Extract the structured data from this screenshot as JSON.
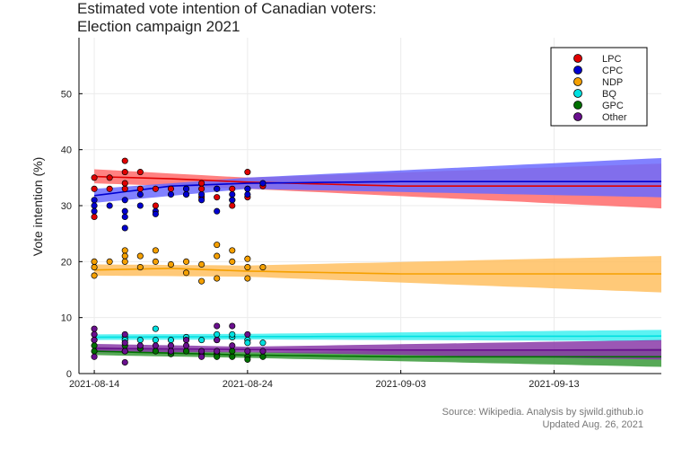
{
  "chart_data": {
    "type": "scatter",
    "title_line1": "Estimated vote intention of Canadian voters:",
    "title_line2": "Election campaign 2021",
    "ylabel": "Vote intention (%)",
    "xlabel": "",
    "x_range_days": [
      "2021-08-13",
      "2021-09-20"
    ],
    "ylim": [
      0,
      60
    ],
    "y_ticks": [
      0,
      10,
      20,
      30,
      40,
      50
    ],
    "x_ticks": [
      "2021-08-14",
      "2021-08-24",
      "2021-09-03",
      "2021-09-13"
    ],
    "grid": true,
    "legend_position": "top-right",
    "source_line1": "Source: Wikipedia. Analysis by sjwild.github.io",
    "source_line2": "Updated Aug. 26, 2021",
    "series": [
      {
        "name": "LPC",
        "color": "#e00000",
        "band_color": "#ff6b6b",
        "points": [
          [
            "2021-08-14",
            35
          ],
          [
            "2021-08-14",
            33
          ],
          [
            "2021-08-14",
            28
          ],
          [
            "2021-08-15",
            35
          ],
          [
            "2021-08-15",
            33
          ],
          [
            "2021-08-16",
            38
          ],
          [
            "2021-08-16",
            36
          ],
          [
            "2021-08-16",
            34
          ],
          [
            "2021-08-16",
            33
          ],
          [
            "2021-08-17",
            36
          ],
          [
            "2021-08-17",
            33
          ],
          [
            "2021-08-18",
            33
          ],
          [
            "2021-08-18",
            30
          ],
          [
            "2021-08-19",
            33
          ],
          [
            "2021-08-20",
            33
          ],
          [
            "2021-08-20",
            32
          ],
          [
            "2021-08-21",
            34
          ],
          [
            "2021-08-21",
            33
          ],
          [
            "2021-08-21",
            31.5
          ],
          [
            "2021-08-22",
            33
          ],
          [
            "2021-08-22",
            31.5
          ],
          [
            "2021-08-23",
            33
          ],
          [
            "2021-08-23",
            31
          ],
          [
            "2021-08-23",
            30
          ],
          [
            "2021-08-24",
            36
          ],
          [
            "2021-08-24",
            33
          ],
          [
            "2021-08-24",
            31.5
          ],
          [
            "2021-08-25",
            33.5
          ]
        ],
        "trend": [
          [
            "2021-08-14",
            35.2
          ],
          [
            "2021-08-19",
            34.8
          ],
          [
            "2021-08-24",
            34.2
          ],
          [
            "2021-09-03",
            33.5
          ],
          [
            "2021-09-20",
            33.5
          ]
        ],
        "band_upper": [
          [
            "2021-08-14",
            36.5
          ],
          [
            "2021-08-24",
            35
          ],
          [
            "2021-09-20",
            37.5
          ]
        ],
        "band_lower": [
          [
            "2021-08-14",
            34
          ],
          [
            "2021-08-24",
            33
          ],
          [
            "2021-09-20",
            29.5
          ]
        ]
      },
      {
        "name": "CPC",
        "color": "#0000d0",
        "band_color": "#6b6bff",
        "points": [
          [
            "2021-08-14",
            31
          ],
          [
            "2021-08-14",
            30
          ],
          [
            "2021-08-14",
            29
          ],
          [
            "2021-08-15",
            30
          ],
          [
            "2021-08-16",
            31
          ],
          [
            "2021-08-16",
            29
          ],
          [
            "2021-08-16",
            28
          ],
          [
            "2021-08-16",
            26
          ],
          [
            "2021-08-17",
            30
          ],
          [
            "2021-08-17",
            32
          ],
          [
            "2021-08-18",
            29
          ],
          [
            "2021-08-18",
            28.5
          ],
          [
            "2021-08-19",
            32
          ],
          [
            "2021-08-20",
            33
          ],
          [
            "2021-08-20",
            32
          ],
          [
            "2021-08-21",
            32
          ],
          [
            "2021-08-21",
            31
          ],
          [
            "2021-08-22",
            33
          ],
          [
            "2021-08-22",
            29
          ],
          [
            "2021-08-23",
            32
          ],
          [
            "2021-08-23",
            31
          ],
          [
            "2021-08-24",
            33
          ],
          [
            "2021-08-24",
            32
          ],
          [
            "2021-08-25",
            34
          ]
        ],
        "trend": [
          [
            "2021-08-14",
            31.8
          ],
          [
            "2021-08-19",
            33.5
          ],
          [
            "2021-08-24",
            34
          ],
          [
            "2021-09-03",
            34.3
          ],
          [
            "2021-09-20",
            34.3
          ]
        ],
        "band_upper": [
          [
            "2021-08-14",
            33
          ],
          [
            "2021-08-24",
            35
          ],
          [
            "2021-09-20",
            38.5
          ]
        ],
        "band_lower": [
          [
            "2021-08-14",
            30.5
          ],
          [
            "2021-08-24",
            33
          ],
          [
            "2021-09-20",
            31.5
          ]
        ]
      },
      {
        "name": "NDP",
        "color": "#f5a000",
        "band_color": "#ffc060",
        "points": [
          [
            "2021-08-14",
            20
          ],
          [
            "2021-08-14",
            19
          ],
          [
            "2021-08-14",
            17.5
          ],
          [
            "2021-08-15",
            20
          ],
          [
            "2021-08-16",
            22
          ],
          [
            "2021-08-16",
            21
          ],
          [
            "2021-08-16",
            20
          ],
          [
            "2021-08-17",
            21
          ],
          [
            "2021-08-17",
            19
          ],
          [
            "2021-08-18",
            22
          ],
          [
            "2021-08-18",
            20
          ],
          [
            "2021-08-19",
            19.5
          ],
          [
            "2021-08-20",
            20
          ],
          [
            "2021-08-20",
            18
          ],
          [
            "2021-08-21",
            19.5
          ],
          [
            "2021-08-21",
            16.5
          ],
          [
            "2021-08-22",
            23
          ],
          [
            "2021-08-22",
            21
          ],
          [
            "2021-08-22",
            17
          ],
          [
            "2021-08-23",
            22
          ],
          [
            "2021-08-23",
            20
          ],
          [
            "2021-08-24",
            20.5
          ],
          [
            "2021-08-24",
            19
          ],
          [
            "2021-08-24",
            17
          ],
          [
            "2021-08-25",
            19
          ]
        ],
        "trend": [
          [
            "2021-08-14",
            18.5
          ],
          [
            "2021-08-19",
            18.8
          ],
          [
            "2021-08-24",
            18.3
          ],
          [
            "2021-09-03",
            17.8
          ],
          [
            "2021-09-20",
            17.8
          ]
        ],
        "band_upper": [
          [
            "2021-08-14",
            19.5
          ],
          [
            "2021-08-24",
            19.3
          ],
          [
            "2021-09-20",
            21
          ]
        ],
        "band_lower": [
          [
            "2021-08-14",
            17.5
          ],
          [
            "2021-08-24",
            17.3
          ],
          [
            "2021-09-20",
            14.5
          ]
        ]
      },
      {
        "name": "BQ",
        "color": "#00e0e0",
        "band_color": "#40f0f0",
        "points": [
          [
            "2021-08-14",
            7
          ],
          [
            "2021-08-14",
            6
          ],
          [
            "2021-08-16",
            6.5
          ],
          [
            "2021-08-16",
            6
          ],
          [
            "2021-08-17",
            6
          ],
          [
            "2021-08-18",
            8
          ],
          [
            "2021-08-18",
            6
          ],
          [
            "2021-08-19",
            6
          ],
          [
            "2021-08-20",
            6.5
          ],
          [
            "2021-08-21",
            6
          ],
          [
            "2021-08-22",
            7
          ],
          [
            "2021-08-22",
            6
          ],
          [
            "2021-08-23",
            6.5
          ],
          [
            "2021-08-23",
            7
          ],
          [
            "2021-08-24",
            6
          ],
          [
            "2021-08-24",
            5.5
          ],
          [
            "2021-08-25",
            5.5
          ]
        ],
        "trend": [
          [
            "2021-08-14",
            6.5
          ],
          [
            "2021-08-24",
            6.6
          ],
          [
            "2021-09-20",
            6.7
          ]
        ],
        "band_upper": [
          [
            "2021-08-14",
            7
          ],
          [
            "2021-08-24",
            7.1
          ],
          [
            "2021-09-20",
            7.8
          ]
        ],
        "band_lower": [
          [
            "2021-08-14",
            6
          ],
          [
            "2021-08-24",
            6.1
          ],
          [
            "2021-09-20",
            5.8
          ]
        ]
      },
      {
        "name": "GPC",
        "color": "#007000",
        "band_color": "#3a9a3a",
        "points": [
          [
            "2021-08-14",
            5
          ],
          [
            "2021-08-14",
            4
          ],
          [
            "2021-08-16",
            5
          ],
          [
            "2021-08-16",
            4
          ],
          [
            "2021-08-17",
            4.5
          ],
          [
            "2021-08-18",
            4
          ],
          [
            "2021-08-19",
            3.5
          ],
          [
            "2021-08-20",
            4
          ],
          [
            "2021-08-21",
            3.5
          ],
          [
            "2021-08-22",
            3.5
          ],
          [
            "2021-08-22",
            3
          ],
          [
            "2021-08-23",
            4
          ],
          [
            "2021-08-23",
            3
          ],
          [
            "2021-08-24",
            3
          ],
          [
            "2021-08-24",
            2.5
          ],
          [
            "2021-08-25",
            3
          ]
        ],
        "trend": [
          [
            "2021-08-14",
            4
          ],
          [
            "2021-08-24",
            3.3
          ],
          [
            "2021-09-03",
            3
          ],
          [
            "2021-09-20",
            3
          ]
        ],
        "band_upper": [
          [
            "2021-08-14",
            4.8
          ],
          [
            "2021-08-24",
            3.8
          ],
          [
            "2021-09-20",
            4.5
          ]
        ],
        "band_lower": [
          [
            "2021-08-14",
            3.3
          ],
          [
            "2021-08-24",
            2.8
          ],
          [
            "2021-09-20",
            1.2
          ]
        ]
      },
      {
        "name": "Other",
        "color": "#6a0f8e",
        "band_color": "#8a3aa8",
        "points": [
          [
            "2021-08-14",
            8
          ],
          [
            "2021-08-14",
            7
          ],
          [
            "2021-08-14",
            6
          ],
          [
            "2021-08-14",
            3
          ],
          [
            "2021-08-16",
            7
          ],
          [
            "2021-08-16",
            5.5
          ],
          [
            "2021-08-16",
            4
          ],
          [
            "2021-08-16",
            2
          ],
          [
            "2021-08-17",
            5
          ],
          [
            "2021-08-18",
            5
          ],
          [
            "2021-08-19",
            5
          ],
          [
            "2021-08-19",
            4
          ],
          [
            "2021-08-20",
            6
          ],
          [
            "2021-08-20",
            5
          ],
          [
            "2021-08-21",
            4
          ],
          [
            "2021-08-21",
            3
          ],
          [
            "2021-08-22",
            8.5
          ],
          [
            "2021-08-22",
            6
          ],
          [
            "2021-08-22",
            4
          ],
          [
            "2021-08-23",
            8.5
          ],
          [
            "2021-08-23",
            5
          ],
          [
            "2021-08-24",
            7
          ],
          [
            "2021-08-24",
            4
          ],
          [
            "2021-08-25",
            4
          ]
        ],
        "trend": [
          [
            "2021-08-14",
            4.5
          ],
          [
            "2021-08-24",
            4.3
          ],
          [
            "2021-09-03",
            4.2
          ],
          [
            "2021-09-20",
            4.2
          ]
        ],
        "band_upper": [
          [
            "2021-08-14",
            5.3
          ],
          [
            "2021-08-24",
            4.8
          ],
          [
            "2021-09-20",
            6
          ]
        ],
        "band_lower": [
          [
            "2021-08-14",
            3.8
          ],
          [
            "2021-08-24",
            3.8
          ],
          [
            "2021-09-20",
            2.5
          ]
        ]
      }
    ]
  }
}
